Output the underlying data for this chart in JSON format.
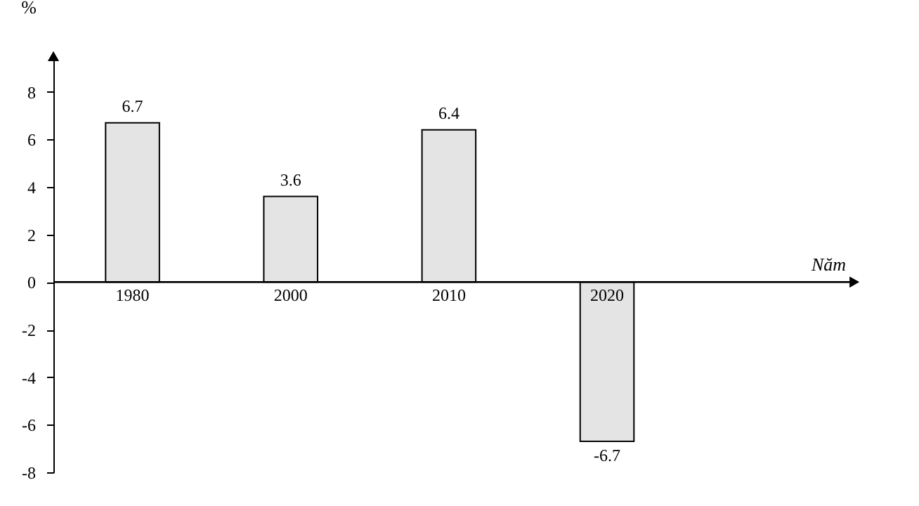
{
  "chart_data": {
    "type": "bar",
    "annotations": [
      "Năm"
    ],
    "ylabel": "%",
    "categories": [
      "1980",
      "2000",
      "2010",
      "2020"
    ],
    "values": [
      6.7,
      3.6,
      6.4,
      -6.7
    ],
    "color": "#e4e4e4",
    "ylim": [
      -8,
      9.5
    ],
    "yticks": [
      -8,
      -6,
      -4,
      -2,
      0,
      2,
      4,
      6,
      8
    ],
    "data_labels": true,
    "grid": false
  }
}
